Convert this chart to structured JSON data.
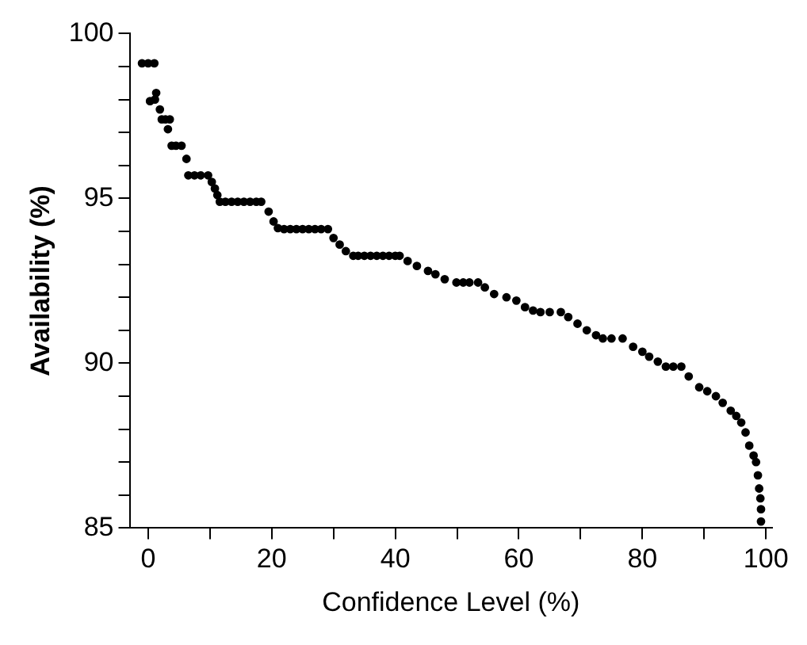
{
  "chart_data": {
    "type": "scatter",
    "xlabel": "Confidence Level (%)",
    "ylabel": "Availability (%)",
    "marker": "circle",
    "grid": false,
    "legend": false,
    "xlim": [
      -3,
      101
    ],
    "ylim": [
      85,
      100
    ],
    "xticks": [
      0,
      {
        "value": 10,
        "label": null
      },
      20,
      {
        "value": 30,
        "label": null
      },
      40,
      {
        "value": 50,
        "label": null
      },
      60,
      {
        "value": 70,
        "label": null
      },
      80,
      {
        "value": 90,
        "label": null
      },
      100
    ],
    "yticks": [
      85,
      {
        "value": 86,
        "label": null
      },
      {
        "value": 87,
        "label": null
      },
      {
        "value": 88,
        "label": null
      },
      {
        "value": 89,
        "label": null
      },
      90,
      {
        "value": 91,
        "label": null
      },
      {
        "value": 92,
        "label": null
      },
      {
        "value": 93,
        "label": null
      },
      {
        "value": 94,
        "label": null
      },
      95,
      {
        "value": 96,
        "label": null
      },
      {
        "value": 97,
        "label": null
      },
      {
        "value": 98,
        "label": null
      },
      {
        "value": 99,
        "label": null
      },
      100
    ],
    "series": [
      {
        "color": "#000000",
        "x": [
          -1,
          0,
          1,
          0.3,
          1.1,
          1.3,
          1.9,
          2.2,
          2.8,
          3.5,
          3.2,
          3.8,
          4.5,
          5.4,
          6.2,
          6.5,
          7.5,
          8.5,
          9.7,
          10.3,
          10.8,
          11.2,
          11.6,
          12.5,
          13.5,
          14.5,
          15.5,
          16.5,
          17.5,
          18.3,
          19.5,
          20.3,
          21,
          22,
          23,
          24,
          25,
          26,
          27,
          28,
          29.1,
          30,
          31,
          32,
          33.2,
          34,
          35,
          36,
          37,
          38,
          39,
          40,
          40.7,
          42,
          43.5,
          45.3,
          46.5,
          48,
          49.9,
          51,
          52,
          53.4,
          54.5,
          56,
          58,
          59.6,
          61,
          62.3,
          63.5,
          65,
          66.8,
          68,
          69.5,
          71,
          72.5,
          73.6,
          75,
          76.8,
          78.5,
          80,
          81.1,
          82.5,
          83.8,
          85,
          86.3,
          87.5,
          89.2,
          90.5,
          91.9,
          93,
          94.3,
          95.2,
          96,
          96.7,
          97.3,
          98,
          98.4,
          98.7,
          98.9,
          99.1,
          99.2,
          99.2
        ],
        "values": [
          99.1,
          99.1,
          99.1,
          97.95,
          98,
          98.2,
          97.7,
          97.4,
          97.4,
          97.4,
          97.1,
          96.6,
          96.6,
          96.6,
          96.2,
          95.7,
          95.7,
          95.7,
          95.7,
          95.5,
          95.3,
          95.1,
          94.9,
          94.9,
          94.9,
          94.9,
          94.9,
          94.9,
          94.9,
          94.9,
          94.6,
          94.3,
          94.1,
          94.07,
          94.07,
          94.07,
          94.07,
          94.07,
          94.07,
          94.07,
          94.07,
          93.8,
          93.6,
          93.4,
          93.26,
          93.26,
          93.26,
          93.26,
          93.26,
          93.26,
          93.26,
          93.26,
          93.26,
          93.1,
          92.95,
          92.8,
          92.7,
          92.55,
          92.45,
          92.45,
          92.45,
          92.45,
          92.3,
          92.1,
          92,
          91.9,
          91.7,
          91.6,
          91.55,
          91.55,
          91.55,
          91.4,
          91.2,
          91,
          90.85,
          90.75,
          90.75,
          90.75,
          90.5,
          90.35,
          90.2,
          90.05,
          89.9,
          89.9,
          89.9,
          89.6,
          89.27,
          89.15,
          89,
          88.8,
          88.56,
          88.4,
          88.2,
          87.9,
          87.5,
          87.2,
          87,
          86.6,
          86.2,
          85.9,
          85.57,
          85.2
        ]
      }
    ]
  }
}
